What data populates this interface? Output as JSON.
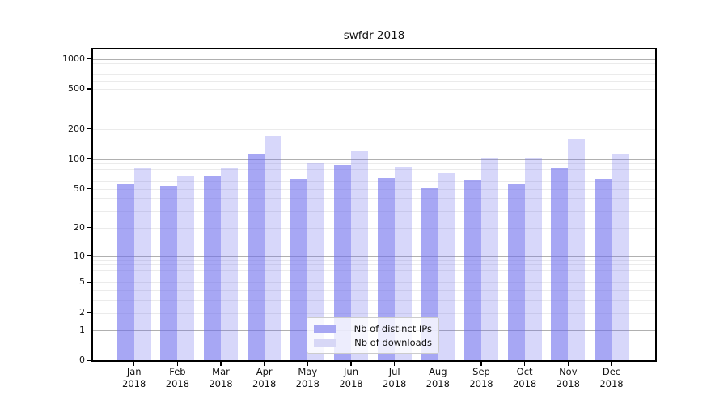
{
  "chart_data": {
    "type": "bar",
    "title": "swfdr 2018",
    "xlabel": "",
    "ylabel": "",
    "year": "2018",
    "categories": [
      "Jan",
      "Feb",
      "Mar",
      "Apr",
      "May",
      "Jun",
      "Jul",
      "Aug",
      "Sep",
      "Oct",
      "Nov",
      "Dec"
    ],
    "series": [
      {
        "name": "Nb of distinct IPs",
        "color": "rgba(108,108,236,0.60)",
        "values": [
          56,
          54,
          67,
          112,
          62,
          88,
          65,
          51,
          61,
          56,
          81,
          64
        ]
      },
      {
        "name": "Nb of downloads",
        "color": "rgba(108,108,236,0.27)",
        "values": [
          81,
          67,
          81,
          170,
          90,
          121,
          82,
          73,
          101,
          101,
          160,
          112
        ]
      }
    ],
    "y_axis": {
      "scale": "log1p",
      "tick_labels": [
        "1000",
        "500",
        "200",
        "100",
        "50",
        "20",
        "10",
        "5",
        "2",
        "1",
        "0"
      ],
      "tick_values": [
        1000,
        500,
        200,
        100,
        50,
        20,
        10,
        5,
        2,
        1,
        0
      ],
      "major_grid_values": [
        1,
        10,
        100,
        1000
      ],
      "minor_grid_values": [
        2,
        3,
        4,
        5,
        6,
        7,
        8,
        9,
        20,
        30,
        40,
        50,
        60,
        70,
        80,
        90,
        200,
        300,
        400,
        500,
        600,
        700,
        800,
        900
      ],
      "range_top": 1243
    },
    "legend_position": "bottom-center",
    "grid": true,
    "colors": {
      "bar_dark_flat": "#a7a7f3",
      "bar_light_flat": "#d7d7f6",
      "grid_major": "#b0b0b0",
      "grid_minor": "#ebebeb",
      "spine": "#000000",
      "text": "#111111"
    }
  }
}
